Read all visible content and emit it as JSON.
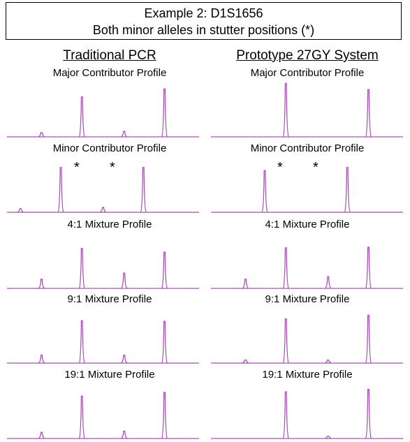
{
  "header": {
    "line1": "Example 2: D1S1656",
    "line2": "Both minor alleles in stutter positions (*)"
  },
  "columns": [
    {
      "heading": "Traditional PCR",
      "profiles": [
        {
          "label": "Major Contributor Profile",
          "peaks": [
            {
              "pos": 0.18,
              "h": 0.07
            },
            {
              "pos": 0.39,
              "h": 0.65
            },
            {
              "pos": 0.61,
              "h": 0.09
            },
            {
              "pos": 0.82,
              "h": 0.78
            }
          ]
        },
        {
          "label": "Minor Contributor Profile",
          "peaks": [
            {
              "pos": 0.07,
              "h": 0.06
            },
            {
              "pos": 0.28,
              "h": 0.73
            },
            {
              "pos": 0.5,
              "h": 0.08
            },
            {
              "pos": 0.71,
              "h": 0.73
            }
          ]
        },
        {
          "label": "4:1 Mixture Profile",
          "peaks": [
            {
              "pos": 0.18,
              "h": 0.15
            },
            {
              "pos": 0.39,
              "h": 0.65
            },
            {
              "pos": 0.61,
              "h": 0.25
            },
            {
              "pos": 0.82,
              "h": 0.59
            }
          ]
        },
        {
          "label": "9:1 Mixture Profile",
          "peaks": [
            {
              "pos": 0.18,
              "h": 0.13
            },
            {
              "pos": 0.39,
              "h": 0.69
            },
            {
              "pos": 0.61,
              "h": 0.13
            },
            {
              "pos": 0.82,
              "h": 0.68
            }
          ]
        },
        {
          "label": "19:1 Mixture Profile",
          "peaks": [
            {
              "pos": 0.18,
              "h": 0.1
            },
            {
              "pos": 0.39,
              "h": 0.69
            },
            {
              "pos": 0.61,
              "h": 0.12
            },
            {
              "pos": 0.82,
              "h": 0.75
            }
          ]
        }
      ],
      "stars": [
        "*",
        "*"
      ]
    },
    {
      "heading": "Prototype 27GY System",
      "profiles": [
        {
          "label": "Major Contributor Profile",
          "peaks": [
            {
              "pos": 0.39,
              "h": 0.87
            },
            {
              "pos": 0.82,
              "h": 0.77
            }
          ]
        },
        {
          "label": "Minor Contributor Profile",
          "peaks": [
            {
              "pos": 0.28,
              "h": 0.68
            },
            {
              "pos": 0.71,
              "h": 0.73
            }
          ]
        },
        {
          "label": "4:1 Mixture Profile",
          "peaks": [
            {
              "pos": 0.18,
              "h": 0.15
            },
            {
              "pos": 0.39,
              "h": 0.66
            },
            {
              "pos": 0.61,
              "h": 0.19
            },
            {
              "pos": 0.82,
              "h": 0.67
            }
          ]
        },
        {
          "label": "9:1 Mixture Profile",
          "peaks": [
            {
              "pos": 0.18,
              "h": 0.05
            },
            {
              "pos": 0.39,
              "h": 0.72
            },
            {
              "pos": 0.61,
              "h": 0.05
            },
            {
              "pos": 0.82,
              "h": 0.78
            }
          ]
        },
        {
          "label": "19:1 Mixture Profile",
          "peaks": [
            {
              "pos": 0.39,
              "h": 0.76
            },
            {
              "pos": 0.61,
              "h": 0.04
            },
            {
              "pos": 0.82,
              "h": 0.8
            }
          ]
        }
      ],
      "stars": [
        "*",
        "*"
      ]
    }
  ],
  "colors": {
    "trace": "#a64fb3",
    "baseline": "#b36fbf"
  }
}
